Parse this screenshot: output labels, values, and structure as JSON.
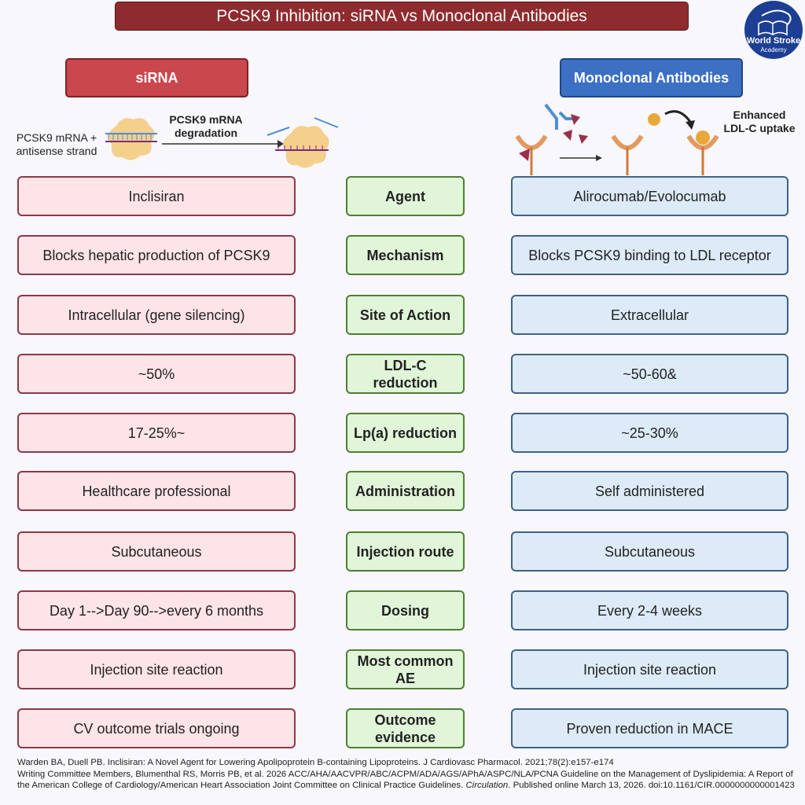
{
  "title": "PCSK9 Inhibition: siRNA vs Monoclonal Antibodies",
  "logo": {
    "text_line1": "World Stroke",
    "text_line2": "Academy",
    "color": "#1d3f93"
  },
  "columns": {
    "left": "siRNA",
    "right": "Monoclonal Antibodies"
  },
  "sirna_diagram": {
    "input_label": "PCSK9 mRNA + antisense strand",
    "arrow_label": "PCSK9 mRNA degradation"
  },
  "mab_diagram": {
    "result_label": "Enhanced LDL-C uptake"
  },
  "rows": [
    {
      "category": "Agent",
      "sirna": "Inclisiran",
      "mab": "Alirocumab/Evolocumab"
    },
    {
      "category": "Mechanism",
      "sirna": "Blocks hepatic production of PCSK9",
      "mab": "Blocks PCSK9 binding to LDL receptor"
    },
    {
      "category": "Site of Action",
      "sirna": "Intracellular (gene silencing)",
      "mab": "Extracellular"
    },
    {
      "category": "LDL-C reduction",
      "sirna": "~50%",
      "mab": "~50-60&"
    },
    {
      "category": "Lp(a) reduction",
      "sirna": "17-25%~",
      "mab": "~25-30%"
    },
    {
      "category": "Administration",
      "sirna": "Healthcare professional",
      "mab": "Self administered"
    },
    {
      "category": "Injection route",
      "sirna": "Subcutaneous",
      "mab": "Subcutaneous"
    },
    {
      "category": "Dosing",
      "sirna": "Day 1-->Day 90-->every 6 months",
      "mab": "Every 2-4 weeks"
    },
    {
      "category": "Most common AE",
      "sirna": "Injection site reaction",
      "mab": "Injection site reaction"
    },
    {
      "category": "Outcome evidence",
      "sirna": "CV outcome trials ongoing",
      "mab": "Proven reduction in MACE"
    }
  ],
  "references": {
    "ref1": "Warden BA, Duell PB. Inclisiran: A Novel Agent for Lowering Apolipoprotein B-containing Lipoproteins. J Cardiovasc Pharmacol. 2021;78(2):e157-e174",
    "ref2_pre": "Writing Committee Members, Blumenthal RS, Morris PB, et al. 2026 ACC/AHA/AACVPR/ABC/ACPM/ADA/AGS/APhA/ASPC/NLA/PCNA Guideline on the Management of Dyslipidemia: A Report of the American College of Cardiology/American Heart Association Joint Committee on Clinical Practice Guidelines. ",
    "ref2_journal": "Circulation",
    "ref2_post": ". Published online March 13, 2026. doi:10.1161/CIR.0000000000001423"
  }
}
